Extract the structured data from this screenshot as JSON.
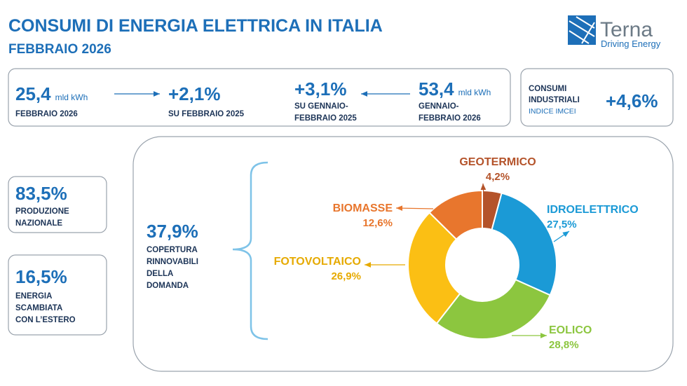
{
  "header": {
    "title": "CONSUMI DI ENERGIA ELETTRICA IN ITALIA",
    "subtitle": "FEBBRAIO 2026"
  },
  "logo": {
    "name": "Terna",
    "tagline": "Driving Energy"
  },
  "summary": [
    {
      "value": "25,4",
      "unit": "mld kWh",
      "label": [
        "FEBBRAIO 2026"
      ]
    },
    {
      "value": "+2,1%",
      "label": [
        "SU FEBBRAIO 2025"
      ]
    },
    {
      "value": "+3,1%",
      "label": [
        "SU GENNAIO-",
        "FEBBRAIO 2025"
      ]
    },
    {
      "value": "53,4",
      "unit": "mld kWh",
      "label": [
        "GENNAIO-",
        "FEBBRAIO 2026"
      ]
    }
  ],
  "industrial": {
    "label": [
      "CONSUMI",
      "INDUSTRIALI"
    ],
    "note": "INDICE IMCEI",
    "value": "+4,6%"
  },
  "side": [
    {
      "value": "83,5%",
      "label": [
        "PRODUZIONE",
        "NAZIONALE"
      ]
    },
    {
      "value": "16,5%",
      "label": [
        "ENERGIA",
        "SCAMBIATA",
        "CON L’ESTERO"
      ]
    }
  ],
  "renewables": {
    "value": "37,9%",
    "label": [
      "COPERTURA",
      "RINNOVABILI",
      "DELLA",
      "DOMANDA"
    ]
  },
  "chart_data": {
    "type": "donut",
    "categories": [
      "GEOTERMICO",
      "IDROELETTRICO",
      "EOLICO",
      "FOTOVOLTAICO",
      "BIOMASSE"
    ],
    "values": [
      4.2,
      27.5,
      28.8,
      26.9,
      12.6
    ],
    "value_labels": [
      "4,2%",
      "27,5%",
      "28,8%",
      "26,9%",
      "12,6%"
    ],
    "colors": [
      "#b4532a",
      "#1b9ad6",
      "#8cc63f",
      "#fbbf14",
      "#e8762d"
    ]
  }
}
